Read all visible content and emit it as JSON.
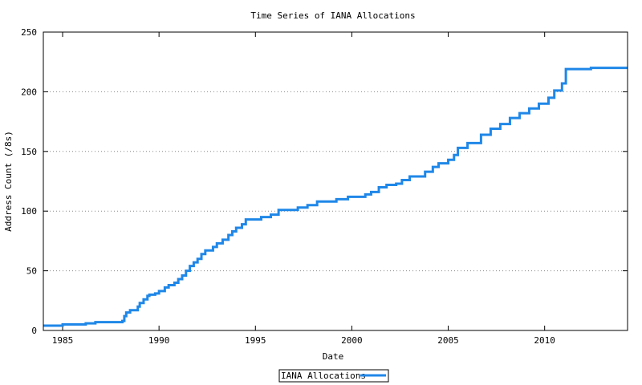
{
  "chart_data": {
    "type": "line",
    "title": "Time Series of IANA Allocations",
    "xlabel": "Date",
    "ylabel": "Address Count (/8s)",
    "xlim": [
      1984,
      2014.3
    ],
    "ylim": [
      0,
      250
    ],
    "x_ticks": [
      1985,
      1990,
      1995,
      2000,
      2005,
      2010
    ],
    "y_ticks": [
      0,
      50,
      100,
      150,
      200,
      250
    ],
    "grid": "horizontal dotted",
    "legend_position": "bottom-center",
    "series": [
      {
        "name": "IANA Allocations",
        "color": "#1f87e8",
        "step": true,
        "x": [
          1984.0,
          1985.0,
          1986.2,
          1986.7,
          1988.1,
          1988.2,
          1988.3,
          1988.5,
          1988.9,
          1989.0,
          1989.2,
          1989.4,
          1989.5,
          1989.8,
          1990.0,
          1990.3,
          1990.5,
          1990.8,
          1991.0,
          1991.2,
          1991.4,
          1991.6,
          1991.8,
          1992.0,
          1992.2,
          1992.4,
          1992.8,
          1993.0,
          1993.3,
          1993.6,
          1993.8,
          1994.0,
          1994.3,
          1994.5,
          1995.3,
          1995.8,
          1996.2,
          1997.2,
          1997.7,
          1998.2,
          1999.2,
          1999.8,
          2000.7,
          2001.0,
          2001.4,
          2001.8,
          2002.3,
          2002.6,
          2003.0,
          2003.8,
          2004.2,
          2004.5,
          2005.0,
          2005.3,
          2005.5,
          2006.0,
          2006.7,
          2007.2,
          2007.7,
          2008.2,
          2008.7,
          2009.2,
          2009.7,
          2010.2,
          2010.5,
          2010.9,
          2011.1,
          2012.4,
          2014.3
        ],
        "y": [
          4,
          5,
          6,
          7,
          8,
          12,
          15,
          17,
          20,
          23,
          26,
          29,
          30,
          31,
          33,
          36,
          38,
          40,
          43,
          46,
          50,
          54,
          57,
          60,
          64,
          67,
          70,
          73,
          76,
          80,
          83,
          86,
          89,
          93,
          95,
          97,
          101,
          103,
          105,
          108,
          110,
          112,
          114,
          116,
          120,
          122,
          123,
          126,
          129,
          133,
          137,
          140,
          143,
          147,
          153,
          157,
          164,
          169,
          173,
          178,
          182,
          186,
          190,
          195,
          201,
          207,
          219,
          220,
          220
        ]
      }
    ]
  }
}
